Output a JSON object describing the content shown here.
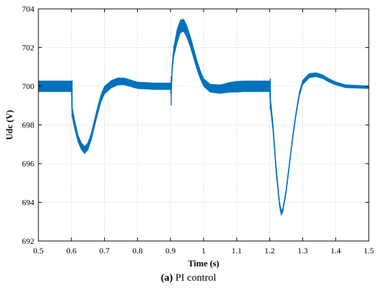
{
  "chart_data": {
    "type": "line",
    "xlabel": "Time (s)",
    "ylabel": "Udc (V)",
    "xlim": [
      0.5,
      1.5
    ],
    "ylim": [
      692,
      704
    ],
    "xticks": [
      "0.5",
      "0.6",
      "0.7",
      "0.8",
      "0.9",
      "1",
      "1.1",
      "1.2",
      "1.3",
      "1.4",
      "1.5"
    ],
    "yticks": [
      "692",
      "694",
      "696",
      "698",
      "700",
      "702",
      "704"
    ],
    "grid": true,
    "series": [
      {
        "color": "#0072BD",
        "center": [
          [
            0.5,
            700.0
          ],
          [
            0.6,
            700.0
          ],
          [
            0.602,
            698.7
          ],
          [
            0.61,
            698.0
          ],
          [
            0.62,
            697.3
          ],
          [
            0.63,
            696.9
          ],
          [
            0.64,
            696.7
          ],
          [
            0.65,
            696.9
          ],
          [
            0.66,
            697.4
          ],
          [
            0.67,
            698.1
          ],
          [
            0.68,
            698.8
          ],
          [
            0.69,
            699.4
          ],
          [
            0.7,
            699.8
          ],
          [
            0.72,
            700.1
          ],
          [
            0.74,
            700.25
          ],
          [
            0.76,
            700.25
          ],
          [
            0.78,
            700.15
          ],
          [
            0.8,
            700.05
          ],
          [
            0.85,
            700.0
          ],
          [
            0.9,
            700.0
          ],
          [
            0.902,
            699.6
          ],
          [
            0.905,
            701.0
          ],
          [
            0.91,
            701.8
          ],
          [
            0.92,
            702.6
          ],
          [
            0.93,
            703.1
          ],
          [
            0.94,
            703.15
          ],
          [
            0.95,
            702.8
          ],
          [
            0.96,
            702.3
          ],
          [
            0.97,
            701.7
          ],
          [
            0.98,
            701.1
          ],
          [
            0.99,
            700.6
          ],
          [
            1.0,
            700.2
          ],
          [
            1.02,
            699.9
          ],
          [
            1.05,
            699.85
          ],
          [
            1.08,
            699.95
          ],
          [
            1.12,
            700.0
          ],
          [
            1.2,
            700.0
          ],
          [
            1.202,
            699.2
          ],
          [
            1.21,
            697.9
          ],
          [
            1.22,
            695.6
          ],
          [
            1.23,
            693.9
          ],
          [
            1.235,
            693.45
          ],
          [
            1.24,
            693.6
          ],
          [
            1.25,
            694.6
          ],
          [
            1.26,
            696.0
          ],
          [
            1.27,
            697.4
          ],
          [
            1.28,
            698.6
          ],
          [
            1.29,
            699.6
          ],
          [
            1.3,
            700.2
          ],
          [
            1.32,
            700.55
          ],
          [
            1.34,
            700.6
          ],
          [
            1.36,
            700.5
          ],
          [
            1.38,
            700.3
          ],
          [
            1.4,
            700.15
          ],
          [
            1.43,
            700.0
          ],
          [
            1.5,
            699.95
          ]
        ],
        "ripple": [
          [
            0.5,
            0.28
          ],
          [
            0.6,
            0.28
          ],
          [
            0.62,
            0.18
          ],
          [
            0.7,
            0.2
          ],
          [
            0.75,
            0.18
          ],
          [
            0.8,
            0.17
          ],
          [
            0.9,
            0.17
          ],
          [
            0.92,
            0.35
          ],
          [
            0.95,
            0.3
          ],
          [
            1.0,
            0.2
          ],
          [
            1.05,
            0.22
          ],
          [
            1.1,
            0.28
          ],
          [
            1.2,
            0.28
          ],
          [
            1.24,
            0.1
          ],
          [
            1.3,
            0.12
          ],
          [
            1.4,
            0.08
          ],
          [
            1.5,
            0.07
          ]
        ]
      }
    ]
  },
  "caption": {
    "label": "(a)",
    "text": " PI control"
  }
}
